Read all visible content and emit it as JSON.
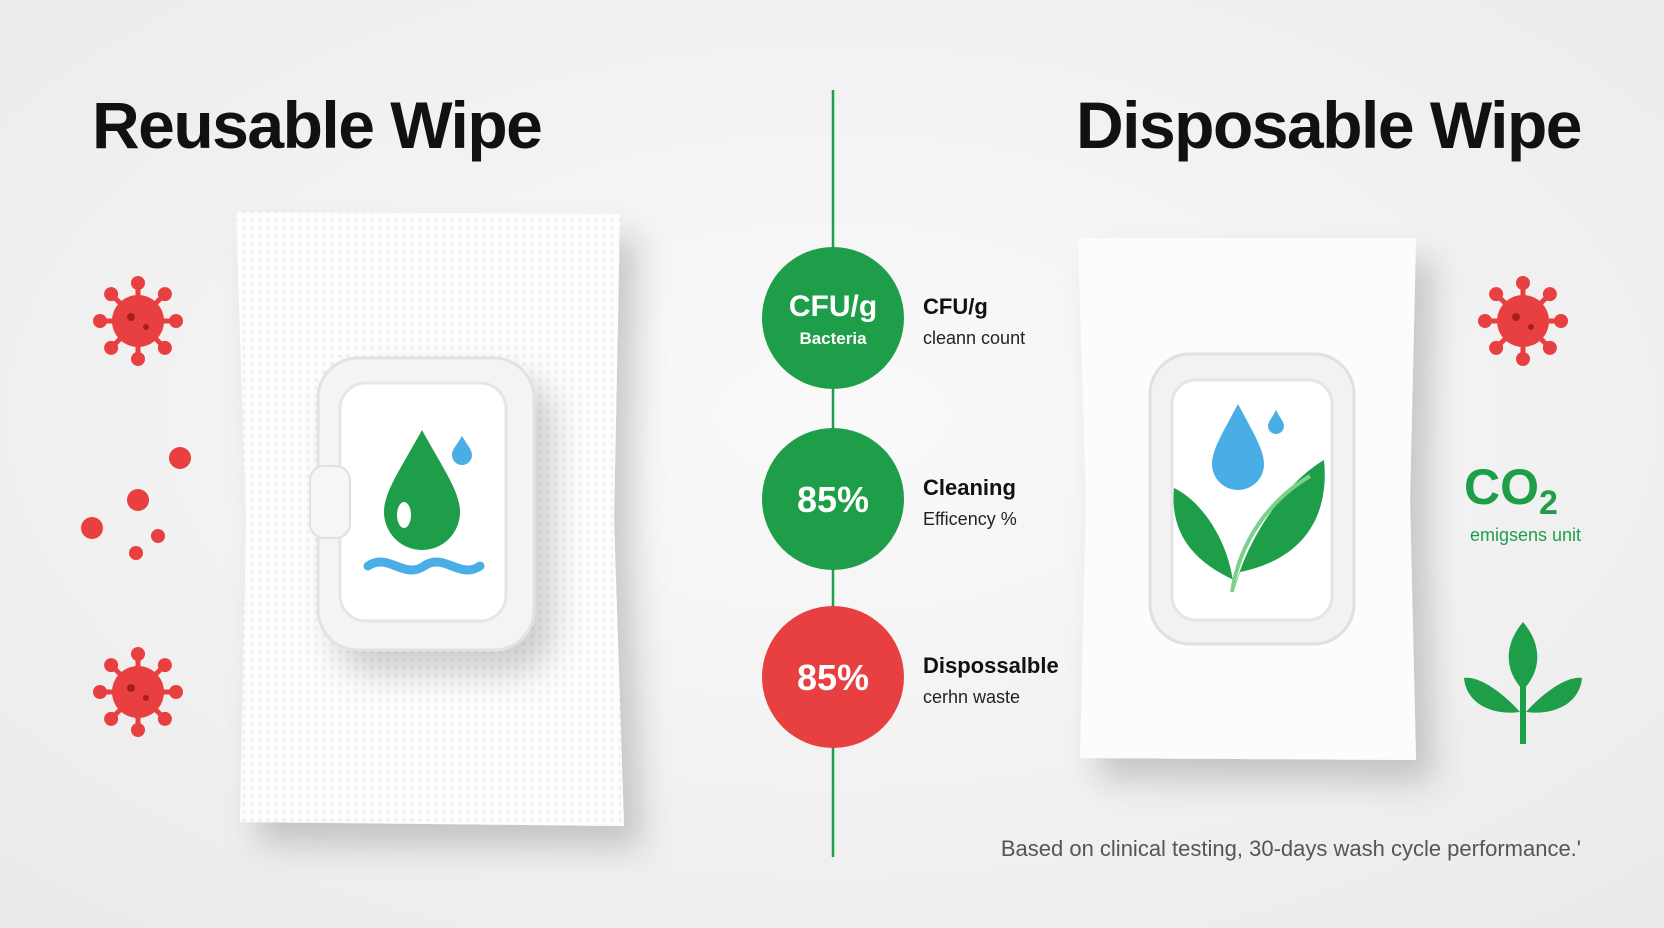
{
  "titles": {
    "left": "Reusable Wipe",
    "right": "Disposable Wipe"
  },
  "metrics": [
    {
      "badge": "CFU/g",
      "badge_sub": "Bacteria",
      "label": "CFU/g",
      "sub": "cleann count",
      "color": "#1f9e4a"
    },
    {
      "badge": "85%",
      "label": "Cleaning",
      "sub": "Efficency %",
      "color": "#1f9e4a"
    },
    {
      "badge": "85%",
      "label": "Dispossalble",
      "sub": "cerhn waste",
      "color": "#e84040"
    }
  ],
  "co2": {
    "text": "CO",
    "subscript": "2",
    "caption": "emigsens unit",
    "color": "#1f9e4a"
  },
  "footnote": "Based on clinical testing, 30-days wash cycle performance.'"
}
